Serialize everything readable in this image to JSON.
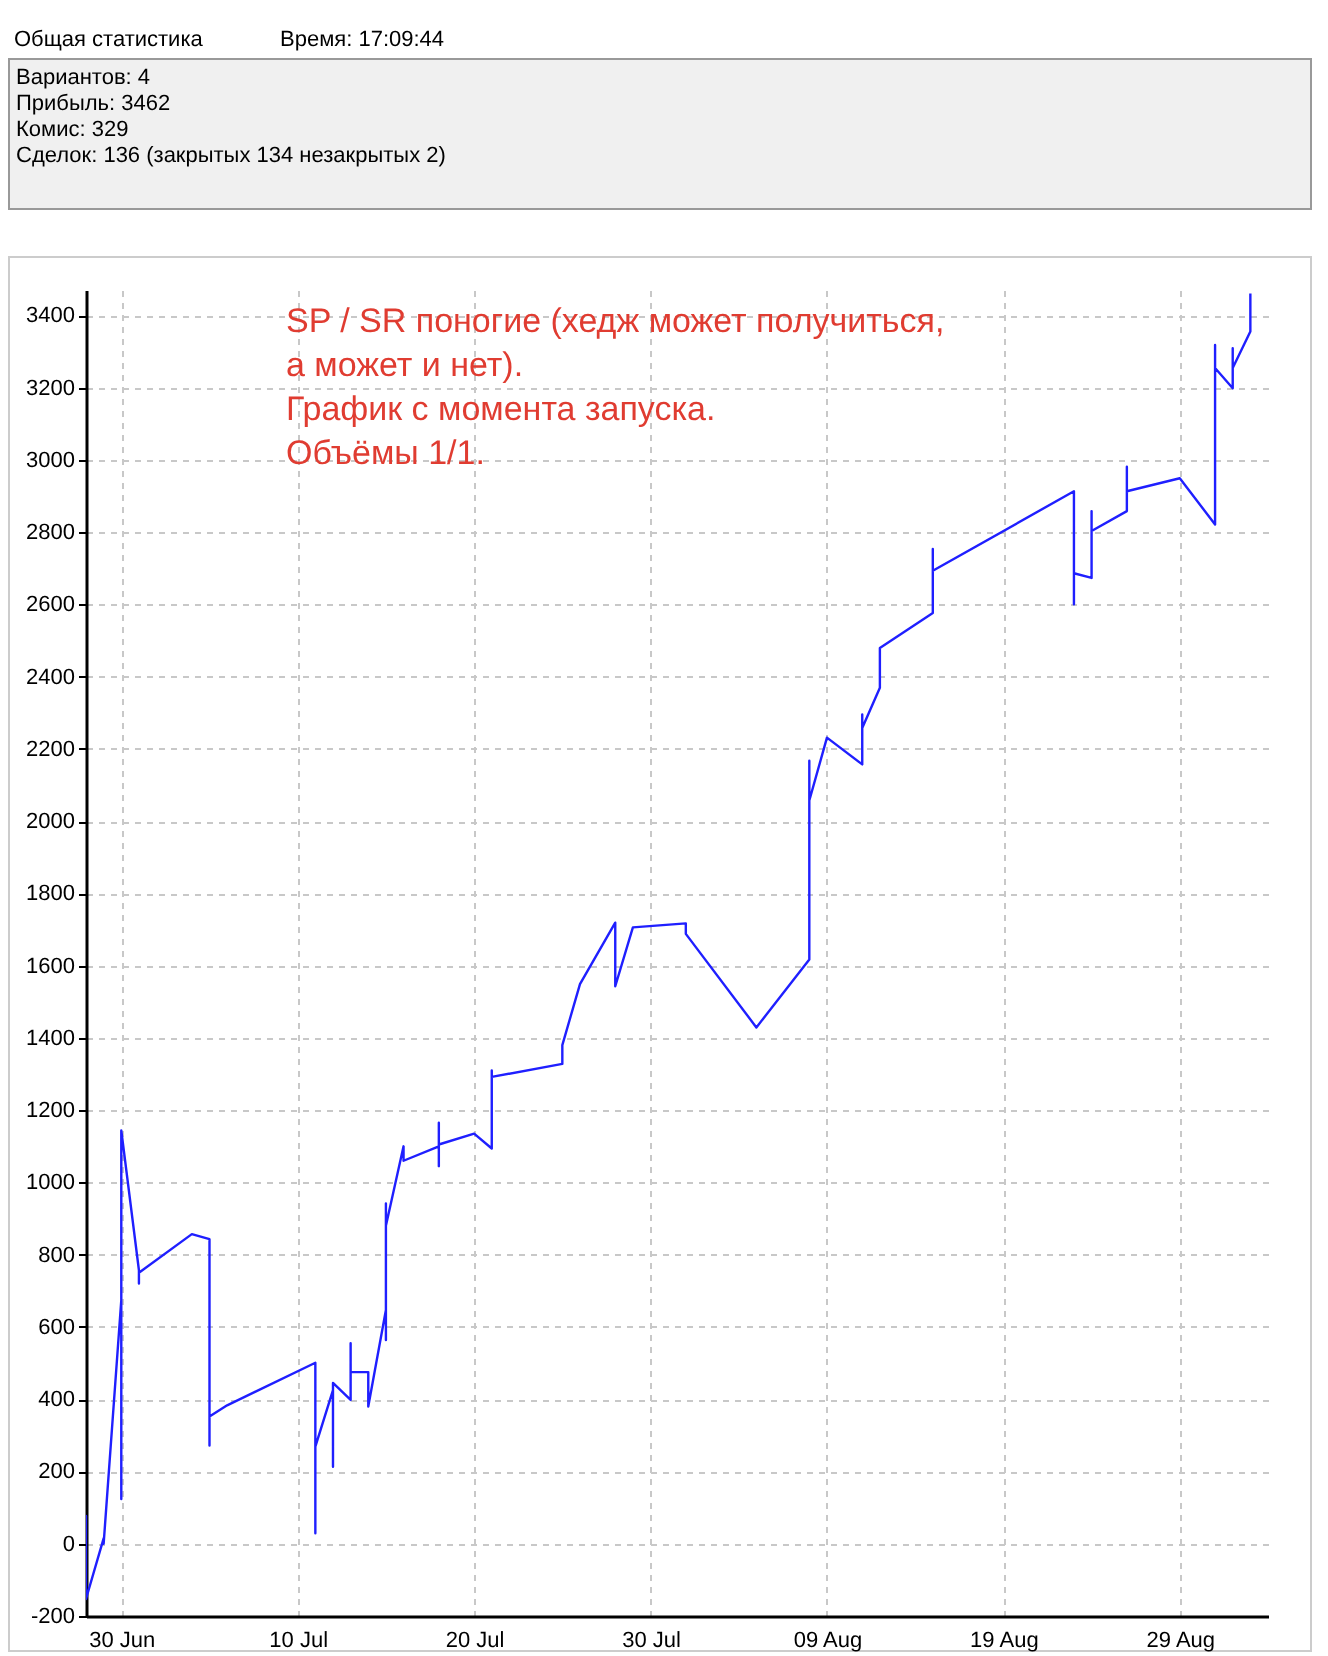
{
  "chart_data": {
    "type": "line",
    "annotations": [
      "Общая статистика",
      "Время: 17:09:44",
      "Вариантов: 4",
      "Прибыль: 3462",
      "Комис: 329",
      "Сделок: 136  (закрытых 134 незакрытых 2)",
      "SP / SR поногие (хедж может получиться,\nа может и нет).\nГрафик с момента запуска.\nОбъёмы 1/1."
    ],
    "series": [
      {
        "color": "#1f1fff",
        "x": [
          "--06-28",
          "--06-28",
          "--06-28",
          "--06-29",
          "--06-29",
          "--06-30",
          "--06-30",
          "--06-30",
          "--07-01",
          "--07-01",
          "--07-01",
          "--07-04",
          "--07-05",
          "--07-05",
          "--07-05",
          "--07-05",
          "--07-06",
          "--07-11",
          "--07-11",
          "--07-11",
          "--07-12",
          "--07-12",
          "--07-12",
          "--07-13",
          "--07-13",
          "--07-13",
          "--07-14",
          "--07-14",
          "--07-15",
          "--07-15",
          "--07-15",
          "--07-15",
          "--07-15",
          "--07-16",
          "--07-16",
          "--07-18",
          "--07-18",
          "--07-18",
          "--07-18",
          "--07-20",
          "--07-21",
          "--07-21",
          "--07-21",
          "--07-25",
          "--07-25",
          "--07-26",
          "--07-28",
          "--07-28",
          "--07-29",
          "--08-01",
          "--08-01",
          "--08-05",
          "--08-08",
          "--08-08",
          "--08-08",
          "--08-08",
          "--08-09",
          "--08-11",
          "--08-11",
          "--08-11",
          "--08-12",
          "--08-12",
          "--08-15",
          "--08-15",
          "--08-15",
          "--08-15",
          "--08-23",
          "--08-23",
          "--08-23",
          "--08-24",
          "--08-24",
          "--08-24",
          "--08-26",
          "--08-26",
          "--08-26",
          "--08-29",
          "--08-31",
          "--08-31",
          "--08-31",
          "--08-31",
          "--09-01",
          "--09-01",
          "--09-01",
          "--09-02",
          "--09-02"
        ],
        "values": [
          0,
          77,
          -153,
          15,
          0,
          674,
          124,
          1144,
          757,
          720,
          750,
          857,
          843,
          272,
          300,
          352,
          383,
          501,
          29,
          269,
          425,
          213,
          445,
          398,
          555,
          475,
          475,
          380,
          647,
          602,
          564,
          942,
          880,
          1100,
          1060,
          1100,
          1165,
          1045,
          1105,
          1135,
          1094,
          1310,
          1292,
          1328,
          1380,
          1549,
          1719,
          1543,
          1706,
          1717,
          1688,
          1429,
          1617,
          1909,
          2167,
          2057,
          2231,
          2157,
          2295,
          2258,
          2369,
          2479,
          2576,
          2683,
          2753,
          2693,
          2913,
          2600,
          2686,
          2673,
          2858,
          2803,
          2858,
          2981,
          2913,
          2949,
          2821,
          3134,
          3318,
          3254,
          3198,
          3309,
          3254,
          3355,
          3460
        ]
      }
    ],
    "xlim": [
      "--06-28",
      "--09-03"
    ],
    "xticks": [
      {
        "value": "--06-30",
        "label": "30 Jun"
      },
      {
        "value": "--07-10",
        "label": "10 Jul"
      },
      {
        "value": "--07-20",
        "label": "20 Jul"
      },
      {
        "value": "--07-30",
        "label": "30 Jul"
      },
      {
        "value": "--08-09",
        "label": "09 Aug"
      },
      {
        "value": "--08-19",
        "label": "19 Aug"
      },
      {
        "value": "--08-29",
        "label": "29 Aug"
      }
    ],
    "ylim": [
      -200,
      3470
    ],
    "yticks": [
      -200,
      0,
      200,
      400,
      600,
      800,
      1000,
      1200,
      1400,
      1600,
      1800,
      2000,
      2200,
      2400,
      2600,
      2800,
      3000,
      3200,
      3400
    ],
    "grid": true,
    "line_style": "solid",
    "marker": "none",
    "legend": false
  }
}
